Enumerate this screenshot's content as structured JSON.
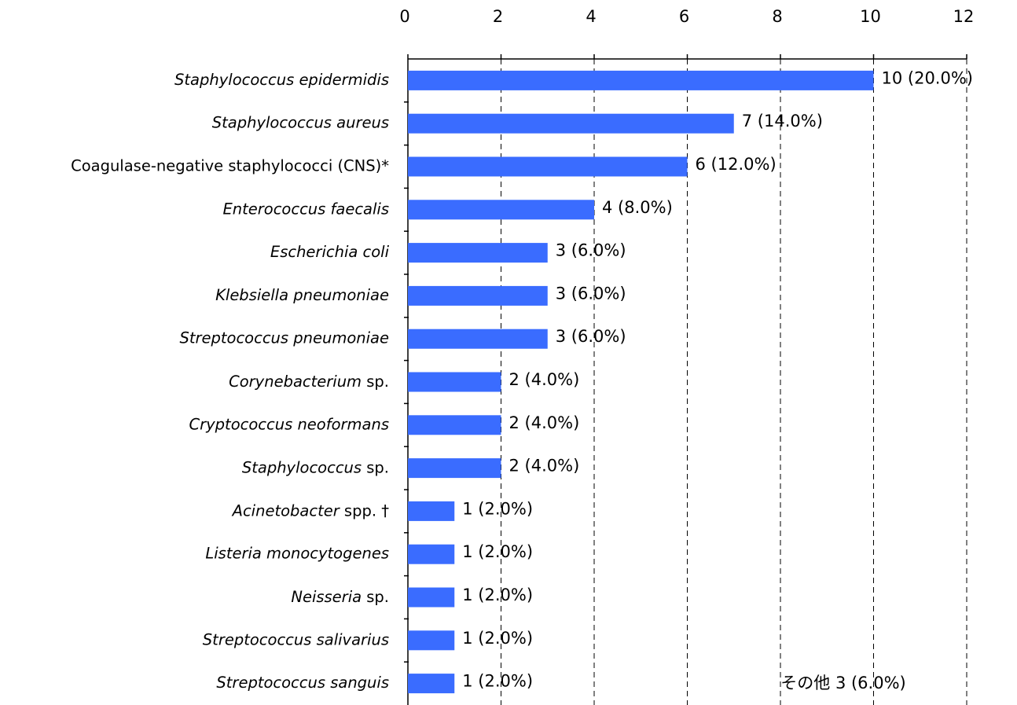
{
  "chart_data": {
    "type": "barh",
    "categories": [
      "Staphylococcus epidermidis",
      "Staphylococcus aureus",
      "Coagulase-negative staphylococci (CNS)*",
      "Enterococcus faecalis",
      "Escherichia coli",
      "Klebsiella pneumoniae",
      "Streptococcus pneumoniae",
      "Corynebacterium sp.",
      "Cryptococcus neoformans",
      "Staphylococcus sp.",
      "Acinetobacter spp. †",
      "Listeria monocytogenes",
      "Neisseria sp.",
      "Streptococcus salivarius",
      "Streptococcus sanguis"
    ],
    "italic": [
      true,
      true,
      false,
      true,
      true,
      true,
      true,
      true,
      true,
      true,
      true,
      true,
      true,
      true,
      true
    ],
    "values": [
      10,
      7,
      6,
      4,
      3,
      3,
      3,
      2,
      2,
      2,
      1,
      1,
      1,
      1,
      1
    ],
    "value_labels": [
      "10 (20.0%)",
      "7 (14.0%)",
      "6 (12.0%)",
      "4 (8.0%)",
      "3 (6.0%)",
      "3 (6.0%)",
      "3 (6.0%)",
      "2 (4.0%)",
      "2 (4.0%)",
      "2 (4.0%)",
      "1 (2.0%)",
      "1 (2.0%)",
      "1 (2.0%)",
      "1 (2.0%)",
      "1 (2.0%)"
    ],
    "color": "#3a6cff",
    "xlim": [
      0,
      12
    ],
    "xticks": [
      0,
      2,
      4,
      6,
      8,
      10,
      12
    ],
    "grid": true,
    "annotation": "その他 3 (6.0%)"
  }
}
